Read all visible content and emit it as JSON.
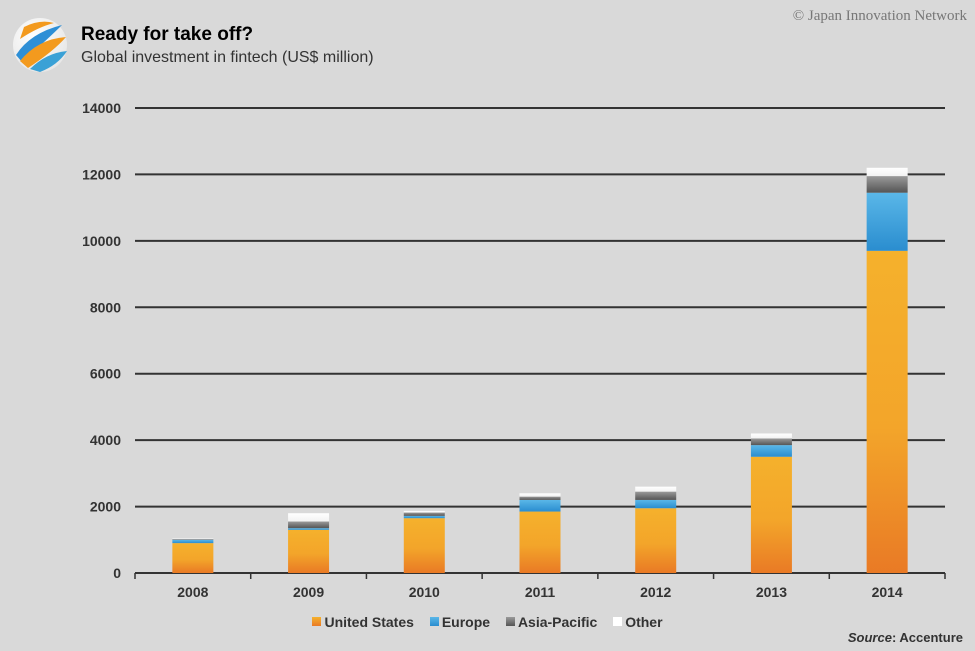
{
  "header": {
    "title": "Ready for take off?",
    "subtitle": "Global investment in fintech (US$ million)",
    "copyright": "© Japan Innovation Network"
  },
  "source": {
    "label": "Source",
    "value": ": Accenture"
  },
  "colors": {
    "United States": "#f0952a",
    "Europe": "#3aa1d6",
    "Asia-Pacific": "#777777",
    "Other": "#ffffff",
    "gridline": "#333333",
    "background": "#d9d9d9"
  },
  "chart_data": {
    "type": "bar",
    "stacked": true,
    "title": "Ready for take off?",
    "subtitle": "Global investment in fintech (US$ million)",
    "categories": [
      "2008",
      "2009",
      "2010",
      "2011",
      "2012",
      "2013",
      "2014"
    ],
    "series": [
      {
        "name": "United States",
        "values": [
          900,
          1300,
          1650,
          1850,
          1950,
          3500,
          9700
        ]
      },
      {
        "name": "Europe",
        "values": [
          100,
          50,
          70,
          350,
          250,
          350,
          1750
        ]
      },
      {
        "name": "Asia-Pacific",
        "values": [
          20,
          200,
          100,
          100,
          250,
          200,
          500
        ]
      },
      {
        "name": "Other",
        "values": [
          20,
          250,
          50,
          100,
          150,
          150,
          250
        ]
      }
    ],
    "yticks": [
      "0",
      "2000",
      "4000",
      "6000",
      "8000",
      "10000",
      "12000",
      "14000"
    ],
    "ylim": [
      0,
      14000
    ],
    "grid": true,
    "legend_position": "bottom"
  }
}
